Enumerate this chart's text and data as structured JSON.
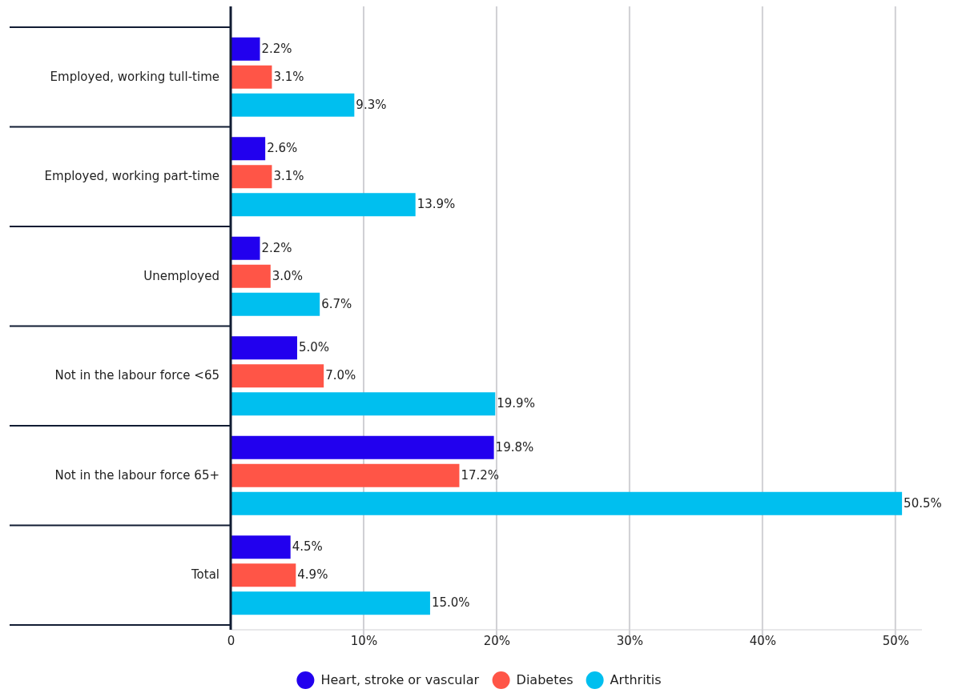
{
  "chart_data": {
    "type": "bar",
    "orientation": "horizontal",
    "categories": [
      "Employed, working tull-time",
      "Employed, working part-time",
      "Unemployed",
      "Not in the labour force <65",
      "Not in the labour force 65+",
      "Total"
    ],
    "series": [
      {
        "name": "Heart, stroke or vascular",
        "color": "#2200ee",
        "values": [
          2.2,
          2.6,
          2.2,
          5.0,
          19.8,
          4.5
        ],
        "value_labels": [
          "2.2%",
          "2.6%",
          "2.2%",
          "5.0%",
          "19.8%",
          "4.5%"
        ]
      },
      {
        "name": "Diabetes",
        "color": "#ff5547",
        "values": [
          3.1,
          3.1,
          3.0,
          7.0,
          17.2,
          4.9
        ],
        "value_labels": [
          "3.1%",
          "3.1%",
          "3.0%",
          "7.0%",
          "17.2%",
          "4.9%"
        ]
      },
      {
        "name": "Arthritis",
        "color": "#00bfef",
        "values": [
          9.3,
          13.9,
          6.7,
          19.9,
          50.5,
          15.0
        ],
        "value_labels": [
          "9.3%",
          "13.9%",
          "6.7%",
          "19.9%",
          "50.5%",
          "15.0%"
        ]
      }
    ],
    "xlim": [
      0,
      52
    ],
    "xticks": [
      0,
      {
        "value": 10,
        "label": "10%"
      },
      {
        "value": 20,
        "label": "20%"
      },
      {
        "value": 30,
        "label": "30%"
      },
      {
        "value": 40,
        "label": "40%"
      },
      {
        "value": 50,
        "label": "50%"
      }
    ],
    "grid": "x",
    "legend": "bottom"
  }
}
